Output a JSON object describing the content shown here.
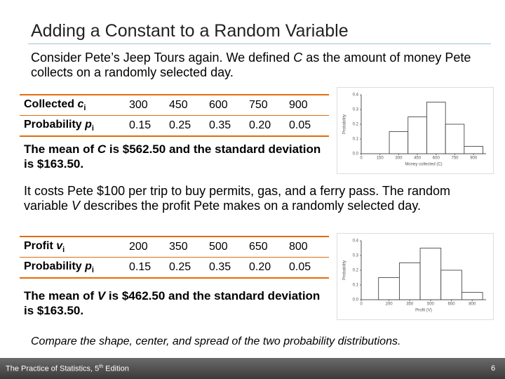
{
  "title": "Adding a Constant to a Random Variable",
  "intro": [
    "Consider Pete’s Jeep Tours again. We defined ",
    "C",
    " as the amount of money Pete collects on a randomly selected day."
  ],
  "table1": {
    "rows": [
      {
        "label": "Collected ",
        "var": "c",
        "sub": "i",
        "cells": [
          "300",
          "450",
          "600",
          "750",
          "900"
        ]
      },
      {
        "label": "Probability ",
        "var": "p",
        "sub": "i",
        "cells": [
          "0.15",
          "0.25",
          "0.35",
          "0.20",
          "0.05"
        ]
      }
    ]
  },
  "mean1": [
    "The mean of ",
    "C",
    " is $562.50 and the standard deviation is $163.50."
  ],
  "para2": [
    "It costs Pete $100 per trip to buy permits, gas, and a ferry pass.  The random variable ",
    "V",
    " describes the profit Pete makes on a randomly selected day."
  ],
  "table2": {
    "rows": [
      {
        "label": "Profit ",
        "var": "v",
        "sub": "i",
        "cells": [
          "200",
          "350",
          "500",
          "650",
          "800"
        ]
      },
      {
        "label": "Probability ",
        "var": "p",
        "sub": "i",
        "cells": [
          "0.15",
          "0.25",
          "0.35",
          "0.20",
          "0.05"
        ]
      }
    ]
  },
  "mean2": [
    "The mean of ",
    "V",
    " is $462.50 and the standard deviation is $163.50."
  ],
  "closing": "Compare the shape, center, and spread of the two probability distributions.",
  "footer": {
    "book": [
      "The Practice of Statistics, 5",
      "th",
      " Edition"
    ],
    "page": "6"
  },
  "charts": [
    {
      "type": "bar",
      "x": [
        300,
        450,
        600,
        750,
        900
      ],
      "values": [
        0.15,
        0.25,
        0.35,
        0.2,
        0.05
      ],
      "color": "#ffffff",
      "xlim": [
        0,
        1000
      ],
      "xticks": [
        0,
        150,
        300,
        450,
        600,
        750,
        900
      ],
      "ylim": [
        0,
        0.4
      ],
      "yticks": [
        {
          "value": 0,
          "label": "0.0"
        },
        0.1,
        0.2,
        0.3,
        0.4
      ],
      "xlabel": "Money collected (C)",
      "ylabel": "Probability"
    },
    {
      "type": "bar",
      "x": [
        200,
        350,
        500,
        650,
        800
      ],
      "values": [
        0.15,
        0.25,
        0.35,
        0.2,
        0.05
      ],
      "color": "#ffffff",
      "xlim": [
        0,
        900
      ],
      "xticks": [
        0,
        200,
        350,
        500,
        650,
        800
      ],
      "ylim": [
        0,
        0.4
      ],
      "yticks": [
        {
          "value": 0,
          "label": "0.0"
        },
        0.1,
        0.2,
        0.3,
        0.4
      ],
      "xlabel": "Profit (V)",
      "ylabel": "Probability"
    }
  ]
}
